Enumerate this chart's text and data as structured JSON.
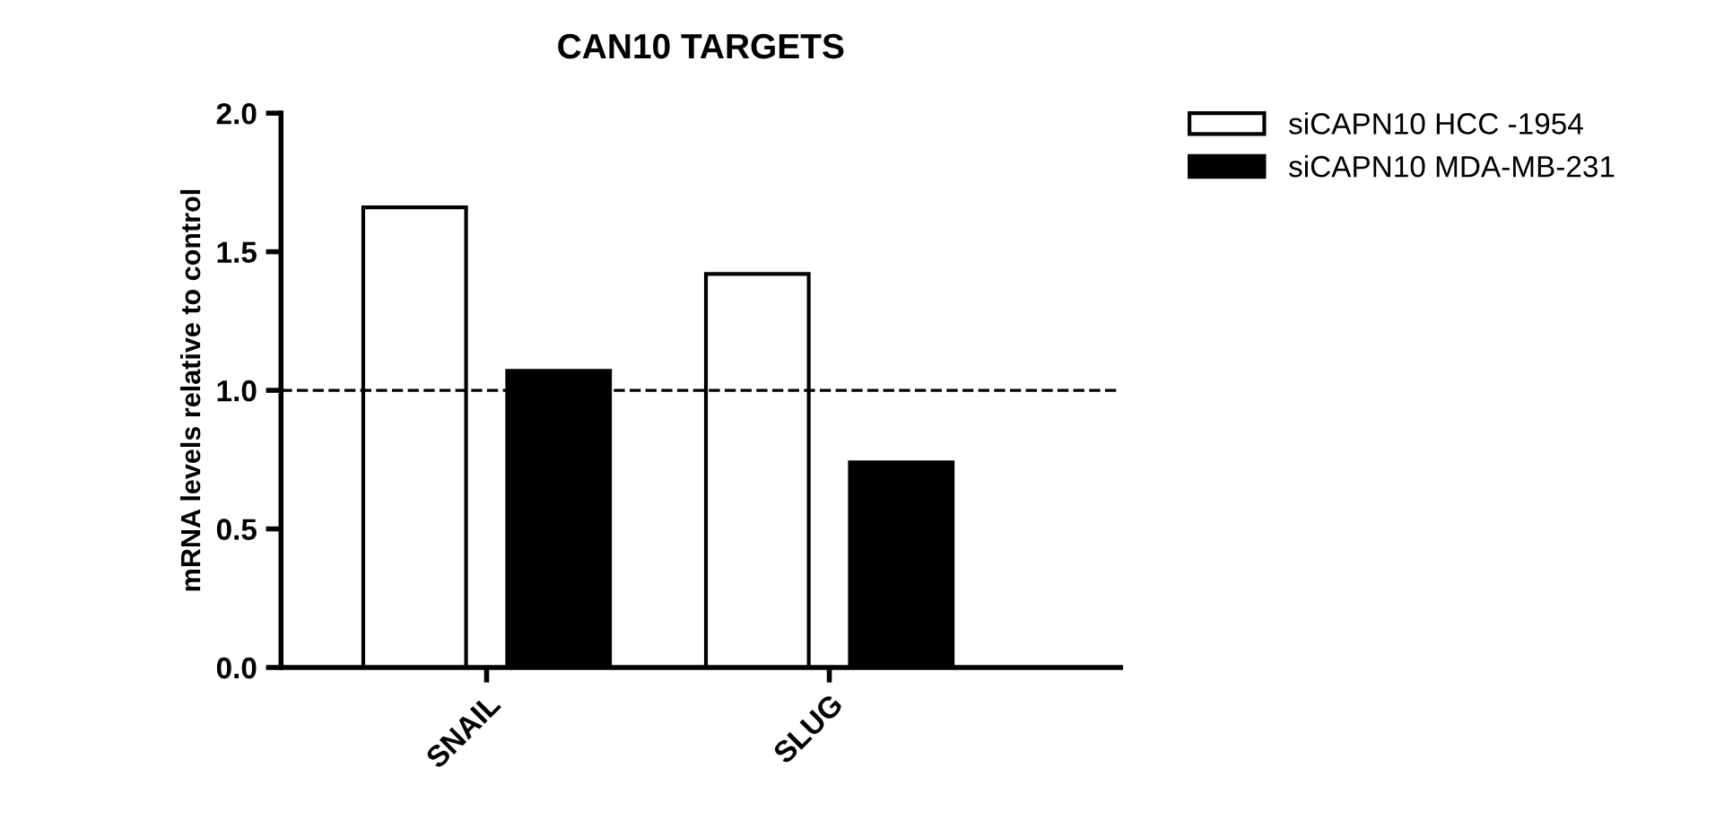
{
  "chart_data": {
    "type": "bar",
    "title": "CAN10 TARGETS",
    "ylabel": "mRNA levels relative to control",
    "categories": [
      "SNAIL",
      "SLUG"
    ],
    "series": [
      {
        "name": "siCAPN10 HCC -1954",
        "color": "#ffffff",
        "values": [
          1.66,
          1.42
        ]
      },
      {
        "name": "siCAPN10 MDA-MB-231",
        "color": "#000000",
        "values": [
          1.07,
          0.74
        ]
      }
    ],
    "ylim": [
      0,
      2.0
    ],
    "yticks": [
      {
        "value": 0,
        "label": "0.0"
      },
      0.5,
      {
        "value": 1,
        "label": "1.0"
      },
      1.5,
      {
        "value": 2,
        "label": "2.0"
      }
    ],
    "ref_lines": [
      {
        "axis": "y",
        "value": 1.0,
        "line_style": "dashed"
      }
    ],
    "grid": false,
    "legend": "top right"
  }
}
